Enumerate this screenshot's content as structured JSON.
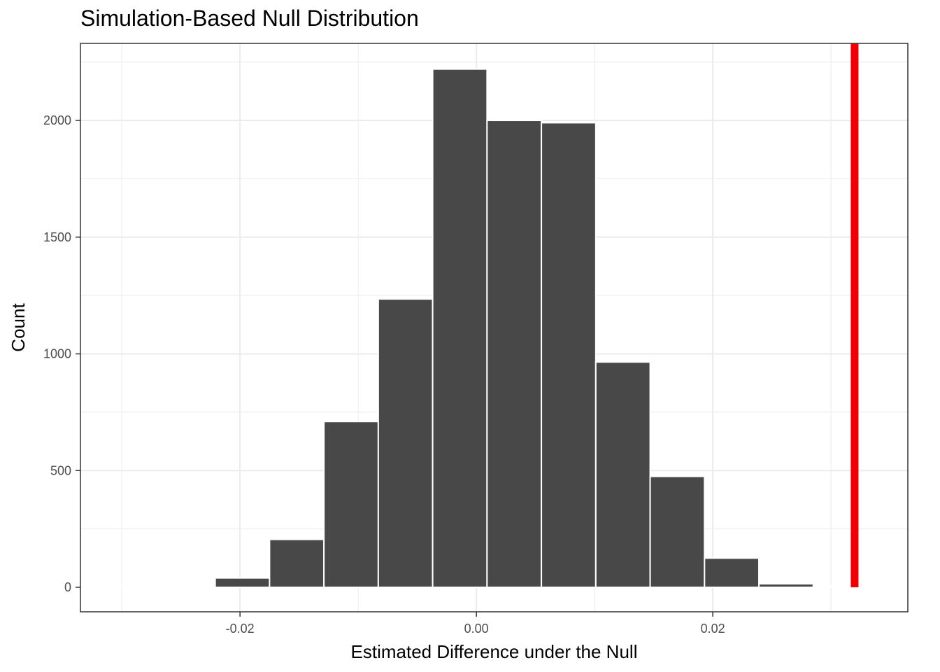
{
  "chart_data": {
    "type": "bar",
    "title": "Simulation-Based Null Distribution",
    "xlabel": "Estimated Difference under the Null",
    "ylabel": "Count",
    "xlim": [
      -0.0335,
      0.0365
    ],
    "ylim": [
      -105,
      2330
    ],
    "x_ticks": [
      -0.02,
      0.0,
      0.02
    ],
    "x_tick_labels": [
      "-0.02",
      "0.00",
      "0.02"
    ],
    "y_ticks": [
      0,
      500,
      1000,
      1500,
      2000
    ],
    "y_tick_labels": [
      "0",
      "500",
      "1000",
      "1500",
      "2000"
    ],
    "grid": true,
    "bin_width": 0.0046,
    "bins": [
      {
        "x": -0.0336,
        "count": 0
      },
      {
        "x": -0.029,
        "count": 0
      },
      {
        "x": -0.0244,
        "count": 0
      },
      {
        "x": -0.0198,
        "count": 40
      },
      {
        "x": -0.0152,
        "count": 205
      },
      {
        "x": -0.0106,
        "count": 710
      },
      {
        "x": -0.006,
        "count": 1235
      },
      {
        "x": -0.0014,
        "count": 2220
      },
      {
        "x": 0.0032,
        "count": 2000
      },
      {
        "x": 0.0078,
        "count": 1990
      },
      {
        "x": 0.0124,
        "count": 965
      },
      {
        "x": 0.017,
        "count": 475
      },
      {
        "x": 0.0216,
        "count": 125
      },
      {
        "x": 0.0262,
        "count": 15
      },
      {
        "x": 0.0308,
        "count": 0
      },
      {
        "x": 0.0354,
        "count": 0
      }
    ],
    "observed_statistic": 0.032,
    "colors": {
      "bar_fill": "#484848",
      "bar_border": "#ffffff",
      "observed_line": "#ee0000",
      "grid": "#ebebeb",
      "panel_border": "#333333"
    }
  }
}
